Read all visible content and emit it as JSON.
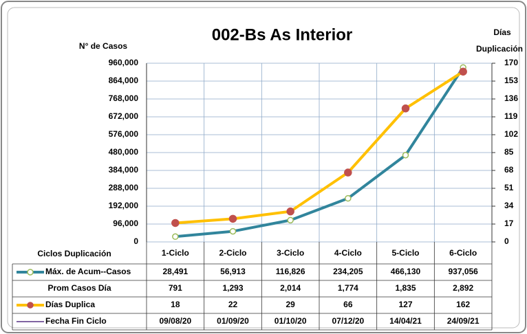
{
  "chart_data": {
    "type": "line",
    "title": "002-Bs As Interior",
    "y_label": "N° de Casos",
    "y2_label": [
      "Días",
      "Duplicación"
    ],
    "x_label": "Ciclos Duplicación",
    "categories": [
      "1-Ciclo",
      "2-Ciclo",
      "3-Ciclo",
      "4-Ciclo",
      "5-Ciclo",
      "6-Ciclo"
    ],
    "ylim": [
      0,
      960000
    ],
    "yticks": [
      0,
      {
        "value": 96000,
        "label": "96,000"
      },
      {
        "value": 192000,
        "label": "192,000"
      },
      {
        "value": 288000,
        "label": "288,000"
      },
      {
        "value": 384000,
        "label": "384,000"
      },
      {
        "value": 480000,
        "label": "480,000"
      },
      {
        "value": 576000,
        "label": "576,000"
      },
      {
        "value": 672000,
        "label": "672,000"
      },
      {
        "value": 768000,
        "label": "768,000"
      },
      {
        "value": 864000,
        "label": "864,000"
      },
      {
        "value": 960000,
        "label": "960,000"
      }
    ],
    "y2lim": [
      0,
      170
    ],
    "y2ticks": [
      0,
      17,
      34,
      51,
      68,
      85,
      102,
      119,
      136,
      153,
      170
    ],
    "grid": true,
    "series": [
      {
        "name": "Máx. de Acum--Casos",
        "color": "#31859c",
        "marker_color": "#9bbb59",
        "values": [
          28491,
          56913,
          116826,
          234205,
          466130,
          937056
        ],
        "value_labels": [
          "28,491",
          "56,913",
          "116,826",
          "234,205",
          "466,130",
          "937,056"
        ]
      },
      {
        "name": "Prom Casos Día",
        "values": [
          791,
          1293,
          2014,
          1774,
          1835,
          2892
        ],
        "value_labels": [
          "791",
          "1,293",
          "2,014",
          "1,774",
          "1,835",
          "2,892"
        ]
      },
      {
        "name": "Días Duplica",
        "color": "#ffc000",
        "marker_color": "#c0504d",
        "axis": "y2",
        "values": [
          18,
          22,
          29,
          66,
          127,
          162
        ]
      },
      {
        "name": "Fecha Fin Ciclo",
        "color": "#8064a2",
        "values": [
          "09/08/20",
          "01/09/20",
          "01/10/20",
          "07/12/20",
          "14/04/21",
          "24/09/21"
        ]
      }
    ]
  }
}
